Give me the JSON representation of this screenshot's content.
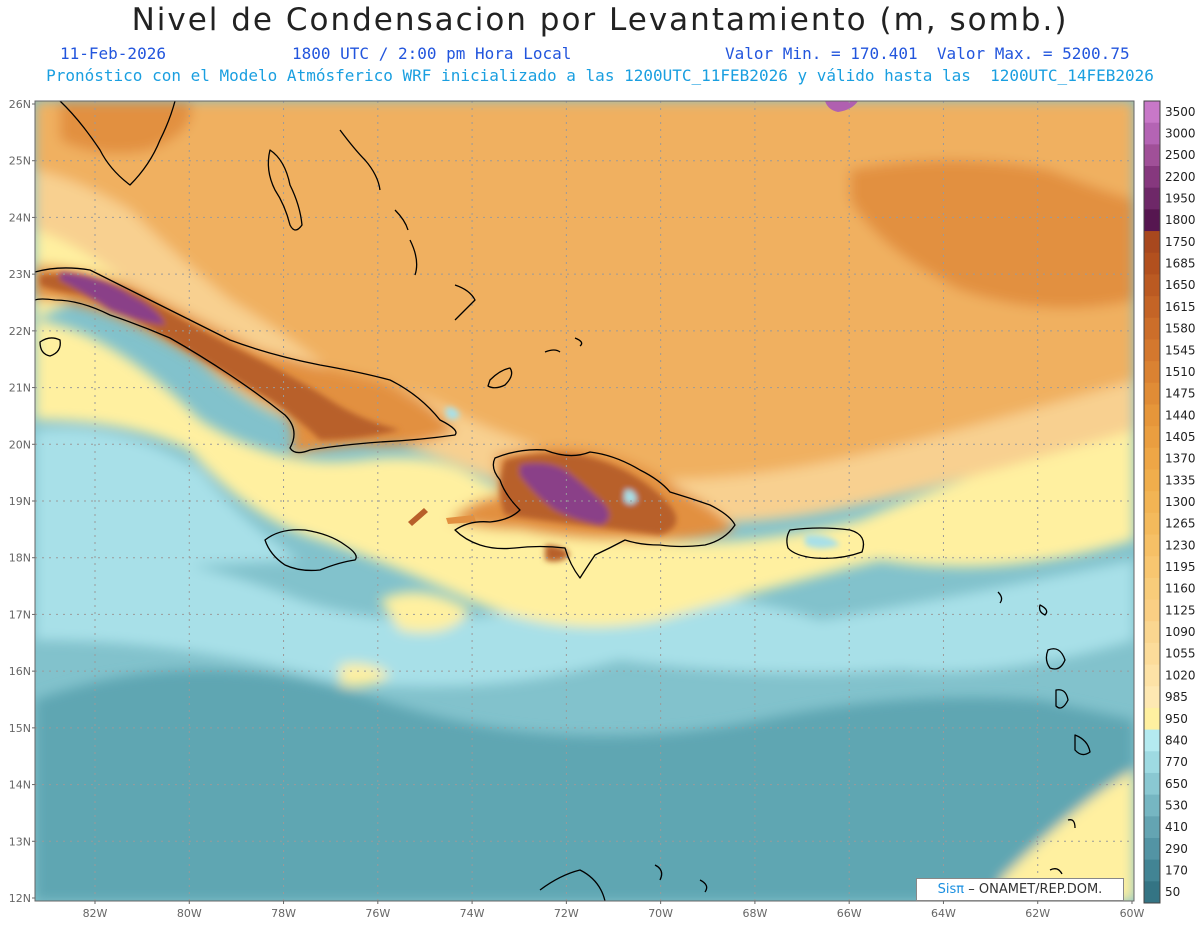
{
  "header": {
    "title": "Nivel de Condensacion por Levantamiento (m, somb.)",
    "date": "11-Feb-2026",
    "time": "1800 UTC / 2:00 pm Hora Local",
    "range": "Valor Min. = 170.401  Valor Max. = 5200.75",
    "forecast": "Pronóstico con el Modelo Atmósferico WRF inicializado a las 1200UTC_11FEB2026 y válido hasta las  1200UTC_14FEB2026"
  },
  "map": {
    "lat_labels": [
      "26N",
      "25N",
      "24N",
      "23N",
      "22N",
      "21N",
      "20N",
      "19N",
      "18N",
      "17N",
      "16N",
      "15N",
      "14N",
      "13N",
      "12N"
    ],
    "lon_labels": [
      "82W",
      "80W",
      "78W",
      "76W",
      "74W",
      "72W",
      "70W",
      "68W",
      "66W",
      "64W",
      "62W",
      "60W"
    ],
    "colors": {
      "ocean_deep": "#5fa6b2",
      "ocean": "#82c2cc",
      "ocean_light": "#a8e0e8",
      "yellow": "#fff0a0",
      "tan": "#f8d090",
      "orange": "#f0b060",
      "orange_dark": "#e29040",
      "brown": "#b8602a",
      "purple": "#8a4088",
      "coast": "#000000",
      "grid": "#9a9a9a"
    }
  },
  "colorbar": {
    "levels": [
      "3500",
      "3000",
      "2500",
      "2200",
      "1950",
      "1800",
      "1750",
      "1685",
      "1650",
      "1615",
      "1580",
      "1545",
      "1510",
      "1475",
      "1440",
      "1405",
      "1370",
      "1335",
      "1300",
      "1265",
      "1230",
      "1195",
      "1160",
      "1125",
      "1090",
      "1055",
      "1020",
      "985",
      "950",
      "840",
      "770",
      "650",
      "530",
      "410",
      "290",
      "170",
      "50"
    ],
    "colors": [
      "#c878c8",
      "#b464b4",
      "#a05098",
      "#86387e",
      "#6e2868",
      "#561650",
      "#a8481e",
      "#b2501e",
      "#bb5a22",
      "#c46426",
      "#cc6e2a",
      "#d4782e",
      "#da8232",
      "#e08c36",
      "#e6963a",
      "#ea9e40",
      "#eea646",
      "#f0ae4c",
      "#f2b454",
      "#f4ba5c",
      "#f6c066",
      "#f8c670",
      "#f8cc7a",
      "#facf84",
      "#fad690",
      "#fcdc9a",
      "#fde2a6",
      "#fee8b2",
      "#fff0a0",
      "#b4eaf0",
      "#9edae2",
      "#8ac8d2",
      "#76b6c2",
      "#64a4b2",
      "#5394a4",
      "#428494",
      "#347484"
    ]
  },
  "credit": {
    "brand": "Sisπ",
    "org": "– ONAMET/REP.DOM."
  }
}
